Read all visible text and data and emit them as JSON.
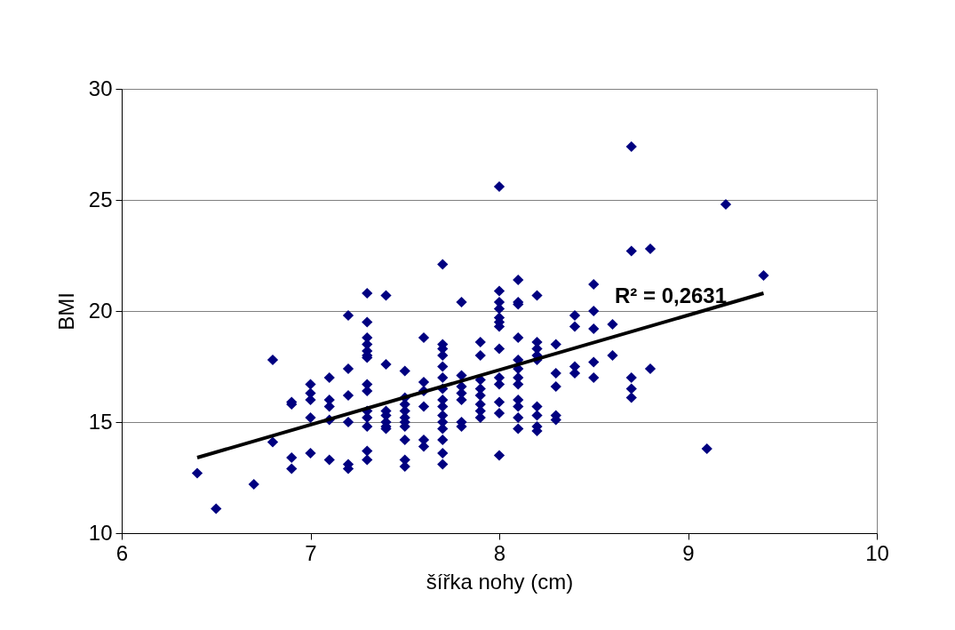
{
  "chart_data": {
    "type": "scatter",
    "xlabel": "šířka nohy (cm)",
    "ylabel": "BMI",
    "xlim": [
      6,
      10
    ],
    "xticks": [
      6,
      7,
      8,
      9,
      10
    ],
    "ylim": [
      10,
      30
    ],
    "yticks": [
      10,
      15,
      20,
      25,
      30
    ],
    "grid": "y",
    "annotations": [
      "R² = 0,2631"
    ],
    "series": [
      {
        "marker": "diamond",
        "color": "#000080",
        "x": [
          6.4,
          6.5,
          6.7,
          6.8,
          6.8,
          6.9,
          6.9,
          6.9,
          6.9,
          7.0,
          7.0,
          7.0,
          7.0,
          7.0,
          7.1,
          7.1,
          7.1,
          7.1,
          7.1,
          7.2,
          7.2,
          7.2,
          7.2,
          7.2,
          7.2,
          7.3,
          7.3,
          7.3,
          7.3,
          7.3,
          7.3,
          7.3,
          7.3,
          7.3,
          7.3,
          7.3,
          7.3,
          7.3,
          7.3,
          7.4,
          7.4,
          7.4,
          7.4,
          7.4,
          7.4,
          7.4,
          7.5,
          7.5,
          7.5,
          7.5,
          7.5,
          7.5,
          7.5,
          7.5,
          7.5,
          7.5,
          7.6,
          7.6,
          7.6,
          7.6,
          7.6,
          7.6,
          7.7,
          7.7,
          7.7,
          7.7,
          7.7,
          7.7,
          7.7,
          7.7,
          7.7,
          7.7,
          7.7,
          7.7,
          7.7,
          7.7,
          7.7,
          7.8,
          7.8,
          7.8,
          7.8,
          7.8,
          7.8,
          7.8,
          7.9,
          7.9,
          7.9,
          7.9,
          7.9,
          7.9,
          7.9,
          7.9,
          8.0,
          8.0,
          8.0,
          8.0,
          8.0,
          8.0,
          8.0,
          8.0,
          8.0,
          8.0,
          8.0,
          8.0,
          8.0,
          8.1,
          8.1,
          8.1,
          8.1,
          8.1,
          8.1,
          8.1,
          8.1,
          8.1,
          8.1,
          8.1,
          8.1,
          8.2,
          8.2,
          8.2,
          8.2,
          8.2,
          8.2,
          8.2,
          8.2,
          8.2,
          8.3,
          8.3,
          8.3,
          8.3,
          8.3,
          8.4,
          8.4,
          8.4,
          8.4,
          8.5,
          8.5,
          8.5,
          8.5,
          8.5,
          8.6,
          8.6,
          8.7,
          8.7,
          8.7,
          8.7,
          8.7,
          8.8,
          8.8,
          9.1,
          9.2,
          9.4
        ],
        "values": [
          12.7,
          11.1,
          12.2,
          17.8,
          14.1,
          15.8,
          15.9,
          13.4,
          12.9,
          16.7,
          16.3,
          16.0,
          15.2,
          13.6,
          17.0,
          16.0,
          15.7,
          15.1,
          13.3,
          19.8,
          17.4,
          16.2,
          15.0,
          13.1,
          12.9,
          20.8,
          19.5,
          18.8,
          18.5,
          18.2,
          18.0,
          17.9,
          16.7,
          16.4,
          15.5,
          15.2,
          14.8,
          13.7,
          13.3,
          20.7,
          17.6,
          15.5,
          15.3,
          15.0,
          14.8,
          14.7,
          17.3,
          16.1,
          15.8,
          15.5,
          15.2,
          15.0,
          14.8,
          14.2,
          13.3,
          13.0,
          18.8,
          16.8,
          16.4,
          15.7,
          14.2,
          13.9,
          22.1,
          18.5,
          18.3,
          18.0,
          17.5,
          17.0,
          16.5,
          16.0,
          15.7,
          15.3,
          15.0,
          14.7,
          14.2,
          13.6,
          13.1,
          20.4,
          17.1,
          16.6,
          16.3,
          16.0,
          15.0,
          14.8,
          18.6,
          18.0,
          16.9,
          16.5,
          16.2,
          15.8,
          15.5,
          15.2,
          25.6,
          20.9,
          20.4,
          20.1,
          19.7,
          19.5,
          19.3,
          18.3,
          17.0,
          16.7,
          15.9,
          15.4,
          13.5,
          21.4,
          20.4,
          20.3,
          18.8,
          17.8,
          17.4,
          17.0,
          16.7,
          16.0,
          15.7,
          15.2,
          14.7,
          20.7,
          18.6,
          18.3,
          18.0,
          17.8,
          15.7,
          15.3,
          14.8,
          14.6,
          18.5,
          17.2,
          16.6,
          15.3,
          15.1,
          19.8,
          19.3,
          17.5,
          17.2,
          21.2,
          20.0,
          19.2,
          17.7,
          17.0,
          19.4,
          18.0,
          27.4,
          22.7,
          17.0,
          16.5,
          16.1,
          22.8,
          17.4,
          13.8,
          24.8,
          21.6
        ]
      },
      {
        "type": "line",
        "marker": "none",
        "color": "#000000",
        "x": [
          6.4,
          9.4
        ],
        "values": [
          13.4,
          20.8
        ]
      }
    ]
  }
}
